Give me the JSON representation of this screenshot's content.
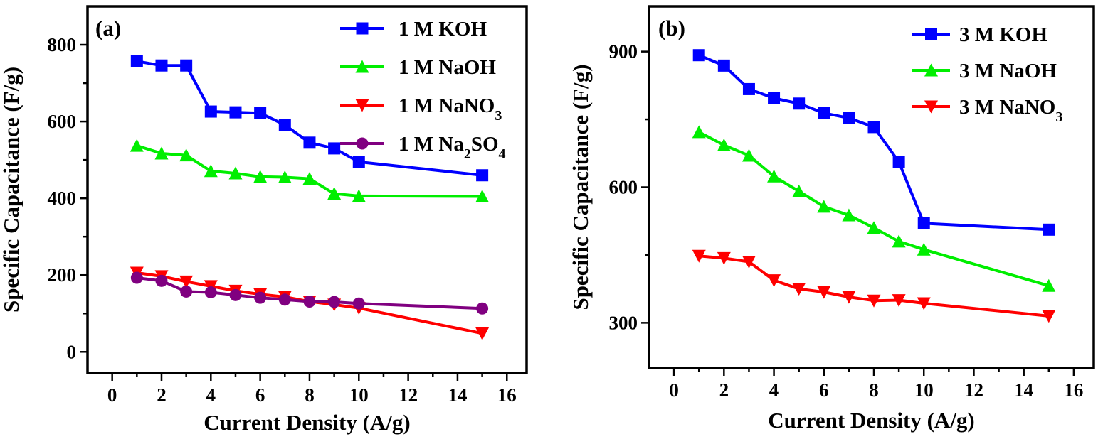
{
  "chart_data": [
    {
      "type": "line",
      "panel_label": "(a)",
      "xlabel": "Current Density (A/g)",
      "ylabel": "Specific Capacitance (F/g)",
      "xlim": [
        -1,
        16.8
      ],
      "ylim": [
        -55,
        900
      ],
      "xticks": [
        0,
        2,
        4,
        6,
        8,
        10,
        12,
        14,
        16
      ],
      "yticks": [
        0,
        200,
        400,
        600,
        800
      ],
      "legend_position": "top-right",
      "grid": false,
      "series": [
        {
          "name": "1 M KOH",
          "color": "#0000ff",
          "marker": "square",
          "x": [
            1,
            2,
            3,
            4,
            5,
            6,
            7,
            8,
            9,
            10,
            15
          ],
          "y": [
            757,
            746,
            746,
            626,
            624,
            622,
            591,
            545,
            530,
            495,
            460
          ]
        },
        {
          "name": "1 M NaOH",
          "color": "#00ee00",
          "marker": "triangle-up",
          "x": [
            1,
            2,
            3,
            4,
            5,
            6,
            7,
            8,
            9,
            10,
            15
          ],
          "y": [
            537,
            517,
            512,
            471,
            465,
            456,
            455,
            451,
            412,
            406,
            405
          ]
        },
        {
          "name": "1 M NaNO3",
          "color": "#ff0000",
          "marker": "triangle-down",
          "x": [
            1,
            2,
            3,
            4,
            5,
            6,
            7,
            8,
            9,
            10,
            15
          ],
          "y": [
            206,
            197,
            183,
            171,
            159,
            150,
            143,
            131,
            123,
            114,
            48
          ]
        },
        {
          "name": "1 M Na2SO4",
          "color": "#800080",
          "marker": "circle",
          "x": [
            1,
            2,
            3,
            4,
            5,
            6,
            7,
            8,
            9,
            10,
            15
          ],
          "y": [
            193,
            185,
            157,
            155,
            148,
            141,
            136,
            131,
            130,
            126,
            113
          ]
        }
      ]
    },
    {
      "type": "line",
      "panel_label": "(b)",
      "xlabel": "Current Density (A/g)",
      "ylabel": "Specific Capacitance (F/g)",
      "xlim": [
        -1,
        16.8
      ],
      "ylim": [
        200,
        1000
      ],
      "xticks": [
        0,
        2,
        4,
        6,
        8,
        10,
        12,
        14,
        16
      ],
      "yticks": [
        300,
        600,
        900
      ],
      "legend_position": "top-right",
      "grid": false,
      "series": [
        {
          "name": "3 M KOH",
          "color": "#0000ff",
          "marker": "square",
          "x": [
            1,
            2,
            3,
            4,
            5,
            6,
            7,
            8,
            9,
            10,
            15
          ],
          "y": [
            892,
            869,
            817,
            797,
            785,
            764,
            753,
            733,
            656,
            520,
            506
          ]
        },
        {
          "name": "3 M NaOH",
          "color": "#00ee00",
          "marker": "triangle-up",
          "x": [
            1,
            2,
            3,
            4,
            5,
            6,
            7,
            8,
            9,
            10,
            15
          ],
          "y": [
            722,
            693,
            670,
            624,
            591,
            557,
            538,
            510,
            480,
            462,
            382
          ]
        },
        {
          "name": "3 M NaNO3",
          "color": "#ff0000",
          "marker": "triangle-down",
          "x": [
            1,
            2,
            3,
            4,
            5,
            6,
            7,
            8,
            9,
            10,
            15
          ],
          "y": [
            448,
            443,
            435,
            394,
            375,
            368,
            357,
            349,
            350,
            343,
            315
          ]
        }
      ]
    }
  ]
}
